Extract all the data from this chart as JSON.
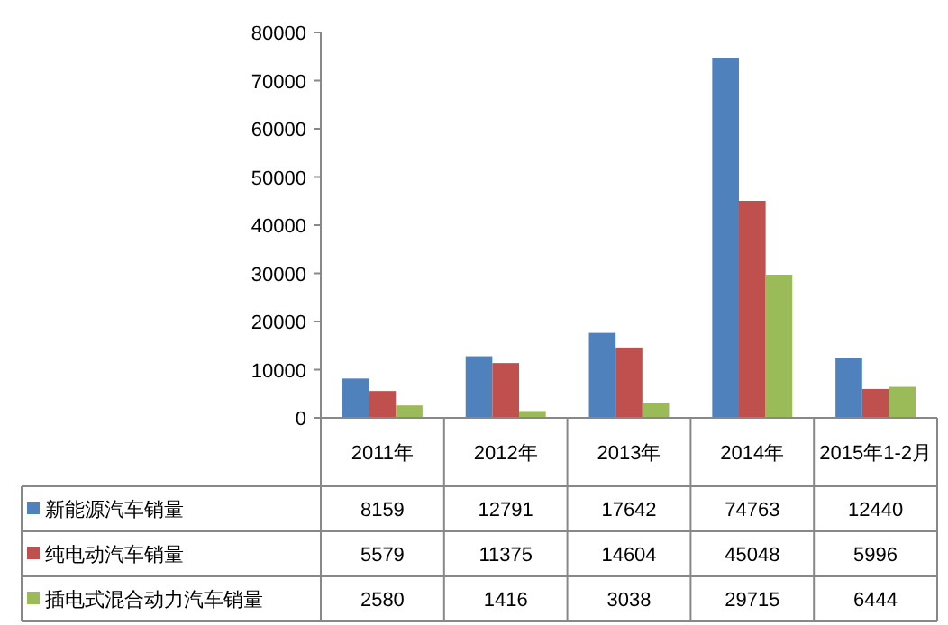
{
  "chart_data": {
    "type": "bar",
    "categories": [
      "2011年",
      "2012年",
      "2013年",
      "2014年",
      "2015年1-2月"
    ],
    "series": [
      {
        "name": "新能源汽车销量",
        "color": "#4f81bd",
        "values": [
          8159,
          12791,
          17642,
          74763,
          12440
        ]
      },
      {
        "name": "纯电动汽车销量",
        "color": "#c0504d",
        "values": [
          5579,
          11375,
          14604,
          45048,
          5996
        ]
      },
      {
        "name": "插电式混合动力汽车销量",
        "color": "#9bbb59",
        "values": [
          2580,
          1416,
          3038,
          29715,
          6444
        ]
      }
    ],
    "ylim": [
      0,
      80000
    ],
    "yticks": [
      0,
      10000,
      20000,
      30000,
      40000,
      50000,
      60000,
      70000,
      80000
    ],
    "grid": false,
    "legend": "bottom",
    "data_labels": true
  }
}
